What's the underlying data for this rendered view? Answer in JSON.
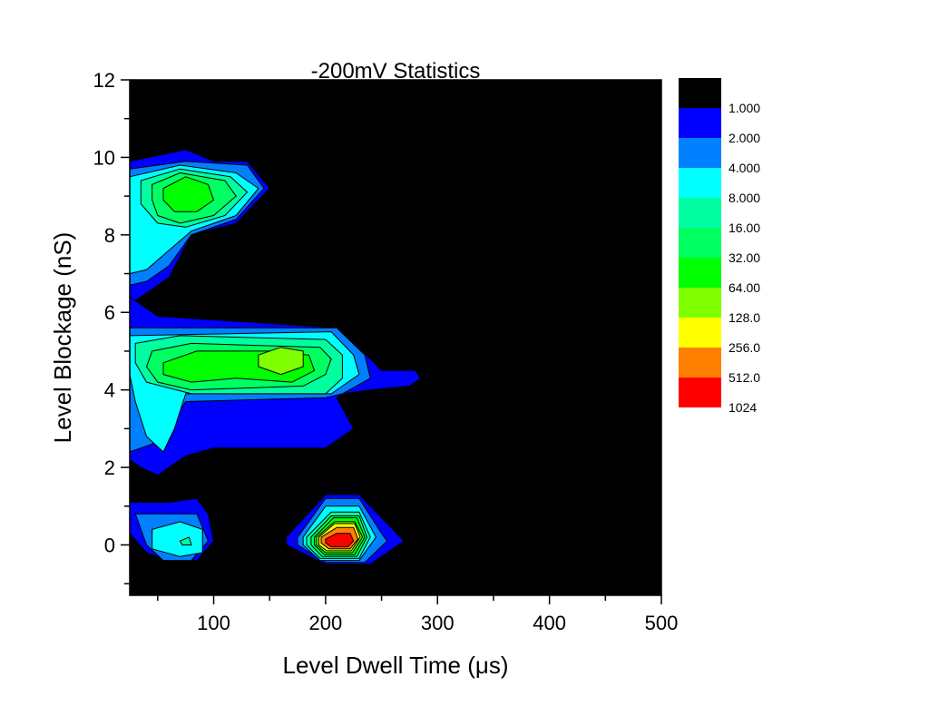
{
  "chart_data": {
    "type": "heatmap",
    "subtype": "filled-contour",
    "title": "-200mV Statistics",
    "xlabel": "Level Dwell Time (μs)",
    "ylabel": "Level Blockage (nS)",
    "xlim": [
      25,
      500
    ],
    "ylim": [
      -1.3,
      12
    ],
    "x_ticks": [
      100,
      200,
      300,
      400,
      500
    ],
    "y_ticks": [
      0,
      2,
      4,
      6,
      8,
      10,
      12
    ],
    "grid": false,
    "background_color": "#000000",
    "legend": {
      "placement": "right",
      "levels": [
        "1.000",
        "2.000",
        "4.000",
        "8.000",
        "16.00",
        "32.00",
        "64.00",
        "128.0",
        "256.0",
        "512.0",
        "1024"
      ],
      "colors": [
        "#000000",
        "#0000ff",
        "#0080ff",
        "#00ffff",
        "#00ffa0",
        "#00ff60",
        "#00ff00",
        "#80ff00",
        "#ffff00",
        "#ff8000",
        "#ff0000"
      ]
    },
    "contours": [
      {
        "level": 2,
        "color": "#0000ff",
        "points": [
          [
            25,
            9.9
          ],
          [
            75,
            10.2
          ],
          [
            100,
            9.9
          ],
          [
            130,
            9.9
          ],
          [
            150,
            9.2
          ],
          [
            120,
            8.3
          ],
          [
            80,
            8.0
          ],
          [
            60,
            6.9
          ],
          [
            40,
            6.5
          ],
          [
            25,
            6.2
          ]
        ]
      },
      {
        "level": 4,
        "color": "#0080ff",
        "points": [
          [
            25,
            9.7
          ],
          [
            75,
            9.9
          ],
          [
            130,
            9.8
          ],
          [
            145,
            9.2
          ],
          [
            120,
            8.4
          ],
          [
            80,
            8.0
          ],
          [
            60,
            7.2
          ],
          [
            40,
            6.8
          ],
          [
            25,
            6.7
          ]
        ]
      },
      {
        "level": 8,
        "color": "#00ffff",
        "points": [
          [
            25,
            9.5
          ],
          [
            70,
            9.8
          ],
          [
            120,
            9.6
          ],
          [
            140,
            9.2
          ],
          [
            120,
            8.5
          ],
          [
            80,
            8.1
          ],
          [
            60,
            7.6
          ],
          [
            40,
            7.1
          ],
          [
            25,
            7.0
          ]
        ]
      },
      {
        "level": 16,
        "color": "#00ffa0",
        "points": [
          [
            35,
            9.4
          ],
          [
            70,
            9.7
          ],
          [
            115,
            9.5
          ],
          [
            130,
            9.1
          ],
          [
            110,
            8.5
          ],
          [
            75,
            8.2
          ],
          [
            50,
            8.3
          ],
          [
            35,
            8.8
          ]
        ]
      },
      {
        "level": 32,
        "color": "#00ff60",
        "points": [
          [
            45,
            9.3
          ],
          [
            70,
            9.6
          ],
          [
            110,
            9.4
          ],
          [
            120,
            9.0
          ],
          [
            100,
            8.5
          ],
          [
            70,
            8.3
          ],
          [
            50,
            8.5
          ],
          [
            45,
            8.9
          ]
        ]
      },
      {
        "level": 64,
        "color": "#00ff00",
        "points": [
          [
            55,
            9.2
          ],
          [
            75,
            9.5
          ],
          [
            95,
            9.3
          ],
          [
            100,
            8.9
          ],
          [
            85,
            8.6
          ],
          [
            65,
            8.6
          ],
          [
            55,
            8.9
          ]
        ]
      },
      {
        "level": 2,
        "color": "#0000ff",
        "points": [
          [
            25,
            6.4
          ],
          [
            50,
            5.9
          ],
          [
            210,
            5.6
          ],
          [
            240,
            4.8
          ],
          [
            250,
            4.5
          ],
          [
            280,
            4.5
          ],
          [
            285,
            4.3
          ],
          [
            275,
            4.1
          ],
          [
            240,
            4.0
          ],
          [
            215,
            3.9
          ],
          [
            210,
            3.8
          ],
          [
            225,
            3.0
          ],
          [
            200,
            2.5
          ],
          [
            100,
            2.5
          ],
          [
            75,
            2.3
          ],
          [
            50,
            1.8
          ],
          [
            35,
            2.0
          ],
          [
            25,
            2.2
          ]
        ]
      },
      {
        "level": 4,
        "color": "#0080ff",
        "points": [
          [
            25,
            5.6
          ],
          [
            210,
            5.6
          ],
          [
            235,
            4.9
          ],
          [
            240,
            4.3
          ],
          [
            215,
            3.9
          ],
          [
            200,
            3.8
          ],
          [
            75,
            3.7
          ],
          [
            60,
            3.0
          ],
          [
            45,
            2.6
          ],
          [
            25,
            2.4
          ]
        ]
      },
      {
        "level": 8,
        "color": "#00ffff",
        "points": [
          [
            25,
            5.4
          ],
          [
            205,
            5.5
          ],
          [
            225,
            4.9
          ],
          [
            230,
            4.4
          ],
          [
            205,
            3.9
          ],
          [
            75,
            3.9
          ],
          [
            65,
            3.0
          ],
          [
            55,
            2.4
          ],
          [
            40,
            2.8
          ],
          [
            30,
            3.7
          ],
          [
            25,
            4.4
          ]
        ]
      },
      {
        "level": 16,
        "color": "#00ffa0",
        "points": [
          [
            30,
            5.2
          ],
          [
            70,
            5.4
          ],
          [
            200,
            5.3
          ],
          [
            215,
            4.9
          ],
          [
            215,
            4.3
          ],
          [
            200,
            3.9
          ],
          [
            80,
            3.9
          ],
          [
            40,
            4.2
          ],
          [
            30,
            4.7
          ]
        ]
      },
      {
        "level": 32,
        "color": "#00ff60",
        "points": [
          [
            45,
            5.0
          ],
          [
            80,
            5.2
          ],
          [
            195,
            5.1
          ],
          [
            205,
            4.8
          ],
          [
            200,
            4.4
          ],
          [
            180,
            4.1
          ],
          [
            80,
            4.0
          ],
          [
            50,
            4.2
          ],
          [
            40,
            4.6
          ]
        ]
      },
      {
        "level": 64,
        "color": "#00ff00",
        "points": [
          [
            55,
            4.7
          ],
          [
            85,
            5.0
          ],
          [
            150,
            5.0
          ],
          [
            185,
            4.9
          ],
          [
            190,
            4.5
          ],
          [
            170,
            4.2
          ],
          [
            120,
            4.3
          ],
          [
            80,
            4.2
          ],
          [
            55,
            4.4
          ]
        ]
      },
      {
        "level": 128,
        "color": "#80ff00",
        "points": [
          [
            140,
            4.9
          ],
          [
            160,
            5.1
          ],
          [
            180,
            5.0
          ],
          [
            180,
            4.6
          ],
          [
            160,
            4.4
          ],
          [
            140,
            4.6
          ]
        ]
      },
      {
        "level": 2,
        "color": "#0000ff",
        "points": [
          [
            25,
            1.1
          ],
          [
            60,
            1.1
          ],
          [
            85,
            1.2
          ],
          [
            95,
            0.8
          ],
          [
            100,
            0.1
          ],
          [
            85,
            -0.4
          ],
          [
            60,
            -0.4
          ],
          [
            40,
            -0.2
          ],
          [
            25,
            0.3
          ]
        ]
      },
      {
        "level": 4,
        "color": "#0080ff",
        "points": [
          [
            30,
            0.8
          ],
          [
            60,
            0.8
          ],
          [
            85,
            0.8
          ],
          [
            95,
            0.1
          ],
          [
            80,
            -0.4
          ],
          [
            55,
            -0.4
          ],
          [
            40,
            0.0
          ]
        ]
      },
      {
        "level": 8,
        "color": "#00ffff",
        "points": [
          [
            45,
            0.4
          ],
          [
            70,
            0.6
          ],
          [
            90,
            0.4
          ],
          [
            90,
            -0.2
          ],
          [
            70,
            -0.3
          ],
          [
            45,
            -0.1
          ]
        ]
      },
      {
        "level": 16,
        "color": "#00ffa0",
        "points": [
          [
            70,
            0.1
          ],
          [
            78,
            0.2
          ],
          [
            80,
            0.0
          ],
          [
            72,
            0.0
          ]
        ]
      },
      {
        "level": 2,
        "color": "#0000ff",
        "points": [
          [
            165,
            0.2
          ],
          [
            200,
            1.3
          ],
          [
            230,
            1.3
          ],
          [
            260,
            0.4
          ],
          [
            270,
            0.1
          ],
          [
            240,
            -0.5
          ],
          [
            200,
            -0.5
          ],
          [
            165,
            0.0
          ]
        ]
      },
      {
        "level": 4,
        "color": "#0080ff",
        "points": [
          [
            175,
            0.2
          ],
          [
            200,
            1.2
          ],
          [
            230,
            1.2
          ],
          [
            250,
            0.3
          ],
          [
            255,
            0.1
          ],
          [
            235,
            -0.45
          ],
          [
            200,
            -0.45
          ],
          [
            175,
            0.0
          ]
        ]
      },
      {
        "level": 8,
        "color": "#00ffff",
        "points": [
          [
            180,
            0.2
          ],
          [
            200,
            1.0
          ],
          [
            230,
            1.0
          ],
          [
            245,
            0.2
          ],
          [
            240,
            0.0
          ],
          [
            230,
            -0.4
          ],
          [
            195,
            -0.4
          ],
          [
            180,
            0.0
          ]
        ]
      },
      {
        "level": 16,
        "color": "#00ffa0",
        "points": [
          [
            183,
            0.2
          ],
          [
            205,
            0.85
          ],
          [
            230,
            0.85
          ],
          [
            240,
            0.2
          ],
          [
            230,
            -0.35
          ],
          [
            195,
            -0.35
          ],
          [
            183,
            0.0
          ]
        ]
      },
      {
        "level": 32,
        "color": "#00ff60",
        "points": [
          [
            187,
            0.2
          ],
          [
            205,
            0.75
          ],
          [
            230,
            0.75
          ],
          [
            237,
            0.2
          ],
          [
            228,
            -0.3
          ],
          [
            197,
            -0.3
          ],
          [
            187,
            0.0
          ]
        ]
      },
      {
        "level": 64,
        "color": "#00ff00",
        "points": [
          [
            190,
            0.2
          ],
          [
            207,
            0.7
          ],
          [
            228,
            0.7
          ],
          [
            235,
            0.2
          ],
          [
            226,
            -0.25
          ],
          [
            199,
            -0.25
          ],
          [
            190,
            0.0
          ]
        ]
      },
      {
        "level": 128,
        "color": "#80ff00",
        "points": [
          [
            192,
            0.2
          ],
          [
            208,
            0.6
          ],
          [
            226,
            0.6
          ],
          [
            233,
            0.2
          ],
          [
            224,
            -0.2
          ],
          [
            200,
            -0.2
          ],
          [
            192,
            0.0
          ]
        ]
      },
      {
        "level": 256,
        "color": "#ffff00",
        "points": [
          [
            194,
            0.2
          ],
          [
            208,
            0.55
          ],
          [
            226,
            0.55
          ],
          [
            231,
            0.2
          ],
          [
            223,
            -0.15
          ],
          [
            201,
            -0.15
          ],
          [
            194,
            0.0
          ]
        ]
      },
      {
        "level": 512,
        "color": "#ff8000",
        "points": [
          [
            196,
            0.2
          ],
          [
            210,
            0.45
          ],
          [
            225,
            0.45
          ],
          [
            229,
            0.15
          ],
          [
            222,
            -0.1
          ],
          [
            203,
            -0.1
          ],
          [
            196,
            0.05
          ]
        ]
      },
      {
        "level": 1024,
        "color": "#ff0000",
        "points": [
          [
            200,
            0.15
          ],
          [
            210,
            0.3
          ],
          [
            222,
            0.3
          ],
          [
            225,
            0.1
          ],
          [
            220,
            -0.05
          ],
          [
            205,
            -0.05
          ],
          [
            200,
            0.05
          ]
        ]
      }
    ]
  }
}
